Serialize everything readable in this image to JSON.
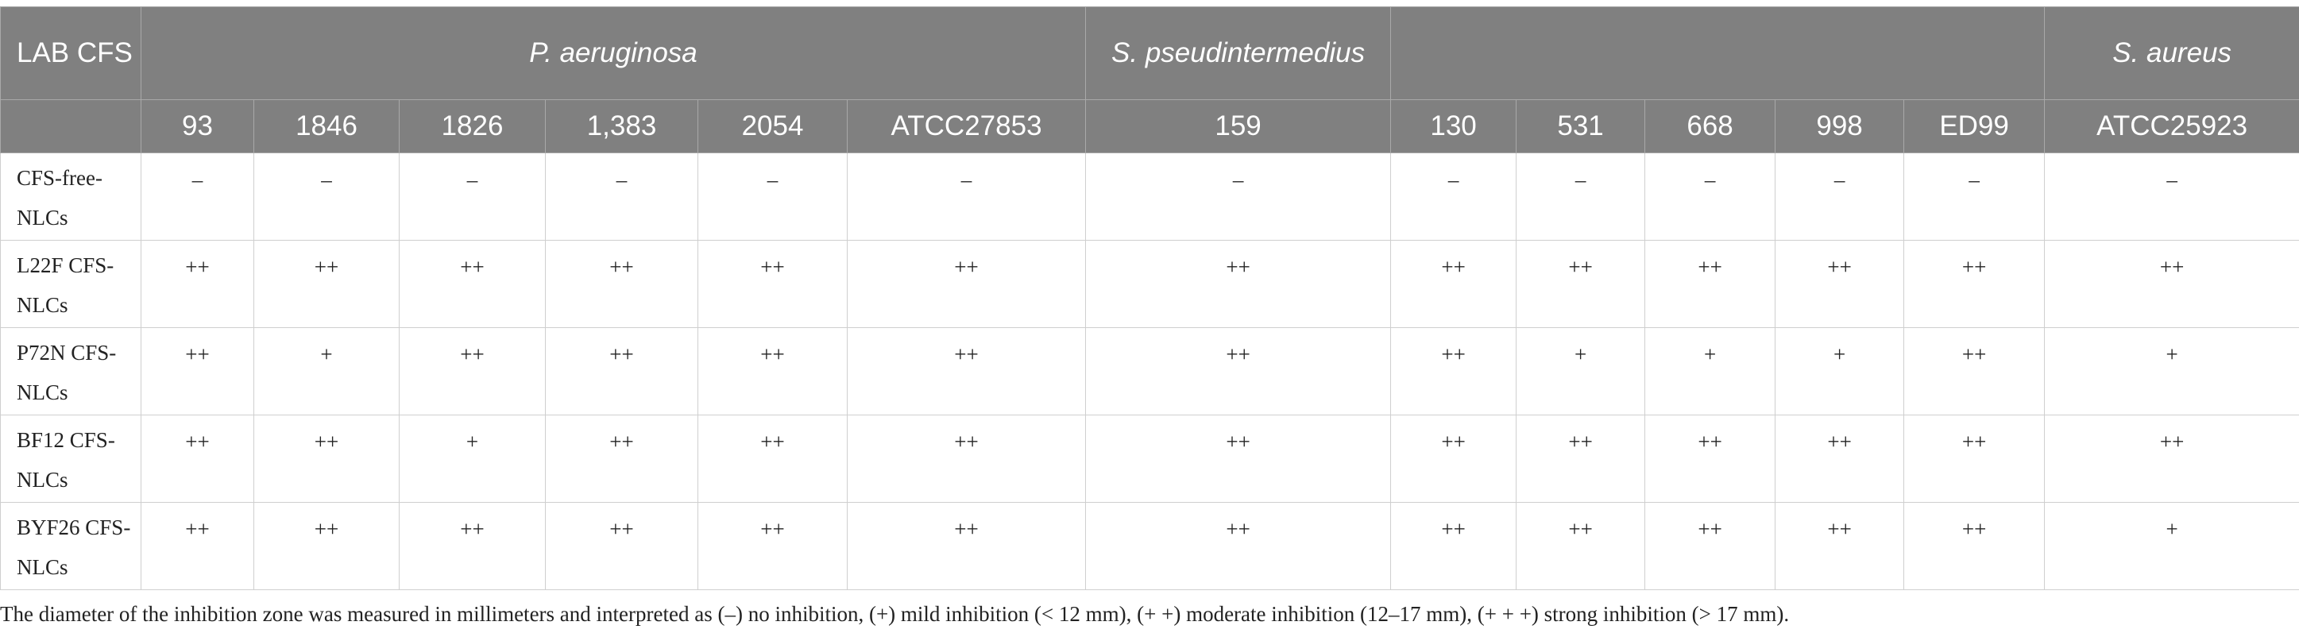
{
  "header": {
    "corner_label": "LAB CFS",
    "groups": [
      {
        "label": "P. aeruginosa",
        "italic": true
      },
      {
        "label": "S. pseudintermedius",
        "italic": true
      },
      {
        "label": "",
        "italic": false
      },
      {
        "label": "S. aureus",
        "italic": true
      }
    ],
    "strains": [
      "93",
      "1846",
      "1826",
      "1,383",
      "2054",
      "ATCC27853",
      "159",
      "130",
      "531",
      "668",
      "998",
      "ED99",
      "ATCC25923"
    ]
  },
  "rows": [
    {
      "label": "CFS-free-NLCs",
      "values": [
        "–",
        "–",
        "–",
        "–",
        "–",
        "–",
        "–",
        "–",
        "–",
        "–",
        "–",
        "–",
        "–"
      ]
    },
    {
      "label": "L22F CFS-NLCs",
      "values": [
        "++",
        "++",
        "++",
        "++",
        "++",
        "++",
        "++",
        "++",
        "++",
        "++",
        "++",
        "++",
        "++"
      ]
    },
    {
      "label": "P72N CFS-NLCs",
      "values": [
        "++",
        "+",
        "++",
        "++",
        "++",
        "++",
        "++",
        "++",
        "+",
        "+",
        "+",
        "++",
        "+"
      ]
    },
    {
      "label": "BF12 CFS-NLCs",
      "values": [
        "++",
        "++",
        "+",
        "++",
        "++",
        "++",
        "++",
        "++",
        "++",
        "++",
        "++",
        "++",
        "++"
      ]
    },
    {
      "label": "BYF26 CFS-NLCs",
      "values": [
        "++",
        "++",
        "++",
        "++",
        "++",
        "++",
        "++",
        "++",
        "++",
        "++",
        "++",
        "++",
        "+"
      ]
    }
  ],
  "footnote": "The diameter of the inhibition zone was measured in millimeters and interpreted as (–) no inhibition, (+) mild inhibition (< 12 mm), (+ +) moderate inhibition (12–17 mm), (+ + +) strong inhibition (> 17 mm).",
  "colors": {
    "header_bg": "#808080",
    "header_text": "#ffffff",
    "grid": "#cfcfcf"
  }
}
